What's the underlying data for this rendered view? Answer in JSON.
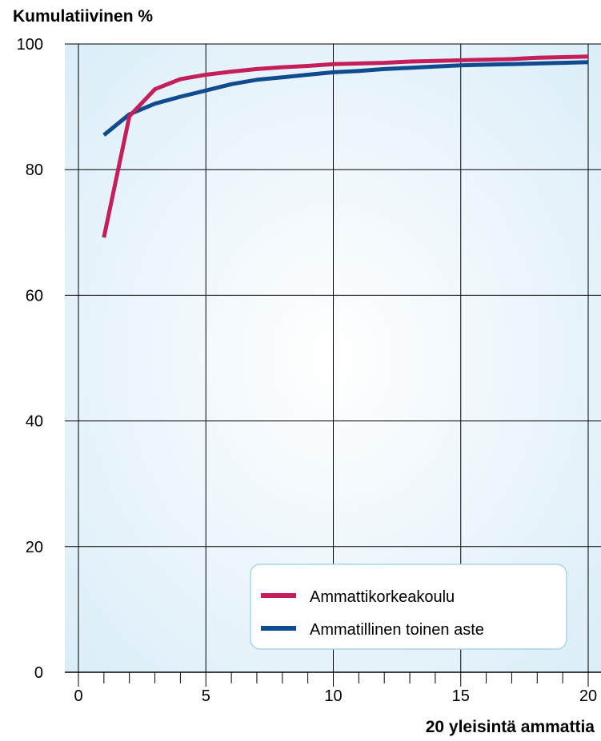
{
  "chart_data": {
    "type": "line",
    "ylabel": "Kumulatiivinen %",
    "xlabel": "20 yleisintä ammattia",
    "xlim": [
      -0.5,
      20.5
    ],
    "ylim": [
      0,
      100
    ],
    "x_ticks": [
      0,
      5,
      10,
      15,
      20
    ],
    "x_tick_labels": [
      "0",
      "5",
      "10",
      "15",
      "20"
    ],
    "y_ticks": [
      0,
      20,
      40,
      60,
      80,
      100
    ],
    "y_tick_labels": [
      "0",
      "20",
      "40",
      "60",
      "80",
      "100"
    ],
    "x_minor_ticks": [
      1,
      2,
      3,
      4,
      6,
      7,
      8,
      9,
      11,
      12,
      13,
      14,
      16,
      17,
      18,
      19
    ],
    "grid": true,
    "legend_position": "bottom-right",
    "x": [
      1,
      2,
      3,
      4,
      5,
      6,
      7,
      8,
      9,
      10,
      11,
      12,
      13,
      14,
      15,
      16,
      17,
      18,
      19,
      20
    ],
    "series": [
      {
        "name": "Ammattikorkeakoulu",
        "color": "#c41e5b",
        "values": [
          69.2,
          88.5,
          92.8,
          94.4,
          95.1,
          95.6,
          96.0,
          96.3,
          96.5,
          96.8,
          96.9,
          97.0,
          97.2,
          97.3,
          97.4,
          97.5,
          97.6,
          97.8,
          97.9,
          98.0
        ]
      },
      {
        "name": "Ammatillinen toinen aste",
        "color": "#114b8f",
        "values": [
          85.5,
          88.8,
          90.5,
          91.6,
          92.6,
          93.6,
          94.3,
          94.7,
          95.1,
          95.5,
          95.7,
          96.0,
          96.2,
          96.4,
          96.6,
          96.7,
          96.8,
          96.9,
          97.0,
          97.1
        ]
      }
    ]
  },
  "colors": {
    "plot_bg_edge": "#d8ecf8",
    "plot_bg_center": "#ffffff",
    "grid": "#000000",
    "legend_border": "#a9d3ee"
  }
}
